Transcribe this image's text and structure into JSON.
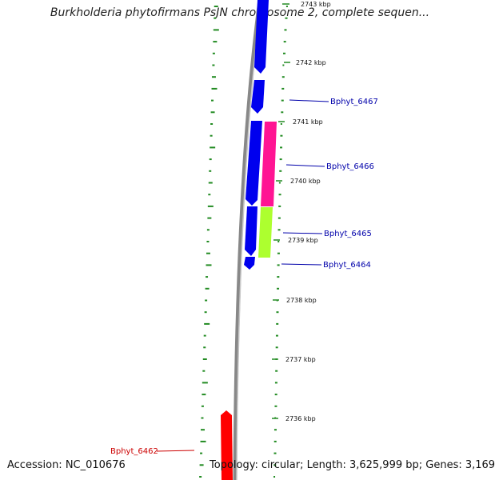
{
  "title": "Burkholderia phytofirmans PsJN chromosome 2, complete sequen...",
  "footer": {
    "accession": "Accession: NC_010676",
    "stats": "Topology: circular; Length: 3,625,999 bp; Genes: 3,169"
  },
  "colors": {
    "minus_strand": "#0000ee",
    "plus_strand_feature": "#ff0000",
    "pink_feature": "#ff1493",
    "lime_feature": "#adff2f",
    "tick": "#228b22",
    "backbone": "#888888",
    "label_blue": "#0000aa",
    "label_red": "#cc0000"
  },
  "kbp_labels": [
    "2743 kbp",
    "2742 kbp",
    "2741 kbp",
    "2740 kbp",
    "2739 kbp",
    "2738 kbp",
    "2737 kbp",
    "2736 kbp"
  ],
  "gene_labels": [
    "Bphyt_6467",
    "Bphyt_6466",
    "Bphyt_6465",
    "Bphyt_6464",
    "Bphyt_6462"
  ]
}
